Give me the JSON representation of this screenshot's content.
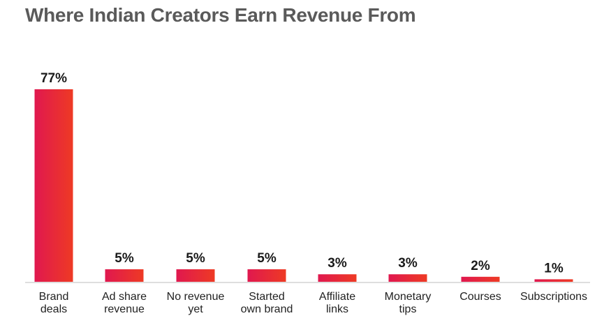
{
  "chart_data": {
    "type": "bar",
    "title": "Where Indian Creators Earn Revenue From",
    "categories": [
      [
        "Brand",
        "deals"
      ],
      [
        "Ad share",
        "revenue"
      ],
      [
        "No revenue",
        "yet"
      ],
      [
        "Started",
        "own brand"
      ],
      [
        "Affiliate",
        "links"
      ],
      [
        "Monetary",
        "tips"
      ],
      [
        "Courses"
      ],
      [
        "Subscriptions"
      ]
    ],
    "values": [
      77,
      5,
      5,
      5,
      3,
      3,
      2,
      1
    ],
    "value_labels": [
      "77%",
      "5%",
      "5%",
      "5%",
      "3%",
      "3%",
      "2%",
      "1%"
    ],
    "unit": "%",
    "xlabel": "",
    "ylabel": "",
    "ylim": [
      0,
      77
    ],
    "grid": false,
    "legend": "none",
    "colors": {
      "bar_start": "#e0184f",
      "bar_end": "#ee3a24",
      "axis": "#bdbdbd",
      "title": "#5a5a5a"
    }
  }
}
